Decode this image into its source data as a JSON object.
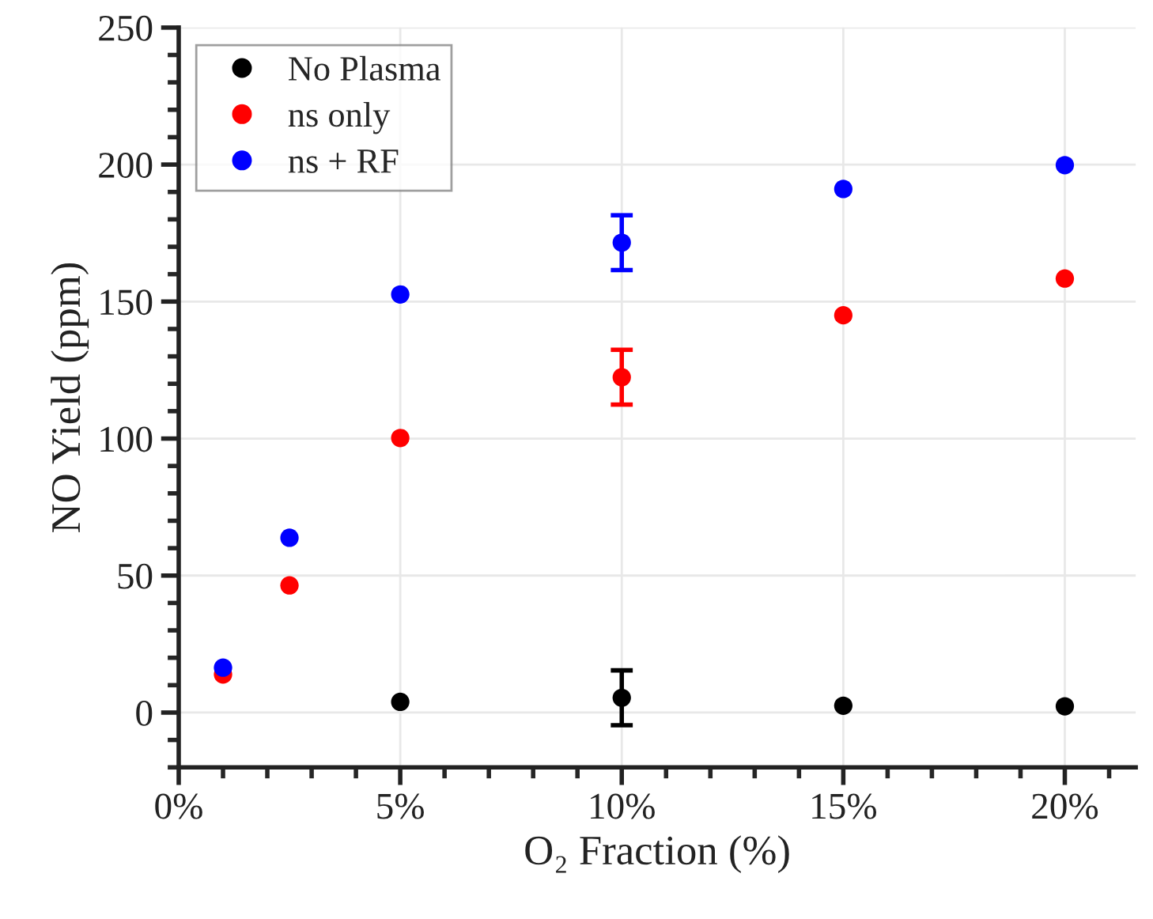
{
  "chart_data": {
    "type": "scatter",
    "xlabel": "O₂ Fraction (%)",
    "ylabel": "NO Yield (ppm)",
    "x": [
      1,
      2.5,
      5,
      10,
      15,
      20
    ],
    "series": [
      {
        "name": "No Plasma",
        "color": "#000000",
        "values": [
          null,
          null,
          3.9,
          5.4,
          2.5,
          2.3
        ],
        "errors": [
          null,
          null,
          null,
          10,
          null,
          null
        ]
      },
      {
        "name": "ns only",
        "color": "#ff0000",
        "values": [
          13.9,
          46.4,
          100.2,
          122.4,
          145,
          158.4
        ],
        "errors": [
          null,
          null,
          null,
          10,
          null,
          null
        ]
      },
      {
        "name": "ns + RF",
        "color": "#0000ff",
        "values": [
          16.4,
          63.8,
          152.6,
          171.5,
          191.1,
          199.8
        ],
        "errors": [
          null,
          null,
          null,
          10,
          null,
          null
        ]
      }
    ],
    "xlim": [
      0,
      21.6
    ],
    "xticks": [
      {
        "value": 0,
        "label": "0%"
      },
      {
        "value": 5,
        "label": "5%"
      },
      {
        "value": 10,
        "label": "10%"
      },
      {
        "value": 15,
        "label": "15%"
      },
      {
        "value": 20,
        "label": "20%"
      }
    ],
    "ylim": [
      -20,
      250
    ],
    "yticks": [
      0,
      50,
      100,
      150,
      200,
      250
    ],
    "grid": true,
    "legend": "top left",
    "marker": "circle"
  }
}
